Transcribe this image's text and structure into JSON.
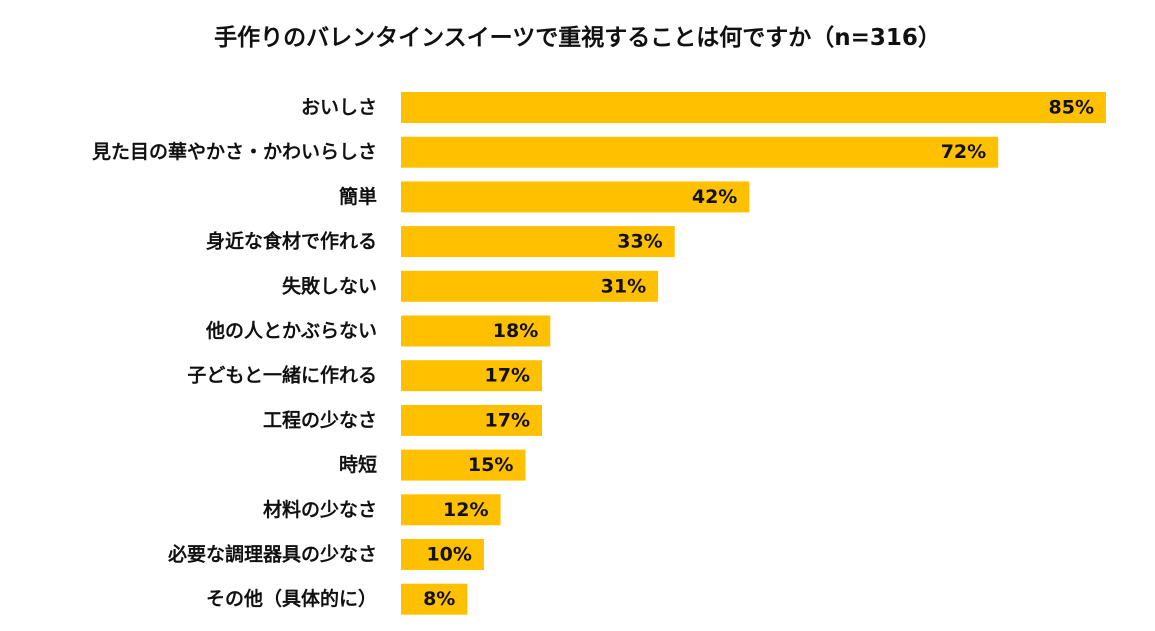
{
  "chart_data": {
    "type": "bar",
    "orientation": "horizontal",
    "title": "手作りのバレンタインスイーツで重視することは何ですか（n=316）",
    "xlabel": "",
    "ylabel": "",
    "xlim": [
      0,
      85
    ],
    "grid": false,
    "bar_color": "#FFC000",
    "categories": [
      "おいしさ",
      "見た目の華やかさ・かわいらしさ",
      "簡単",
      "身近な食材で作れる",
      "失敗しない",
      "他の人とかぶらない",
      "子どもと一緒に作れる",
      "工程の少なさ",
      "時短",
      "材料の少なさ",
      "必要な調理器具の少なさ",
      "その他（具体的に）"
    ],
    "values": [
      85,
      72,
      42,
      33,
      31,
      18,
      17,
      17,
      15,
      12,
      10,
      8
    ],
    "value_labels": [
      "85%",
      "72%",
      "42%",
      "33%",
      "31%",
      "18%",
      "17%",
      "17%",
      "15%",
      "12%",
      "10%",
      "8%"
    ]
  }
}
